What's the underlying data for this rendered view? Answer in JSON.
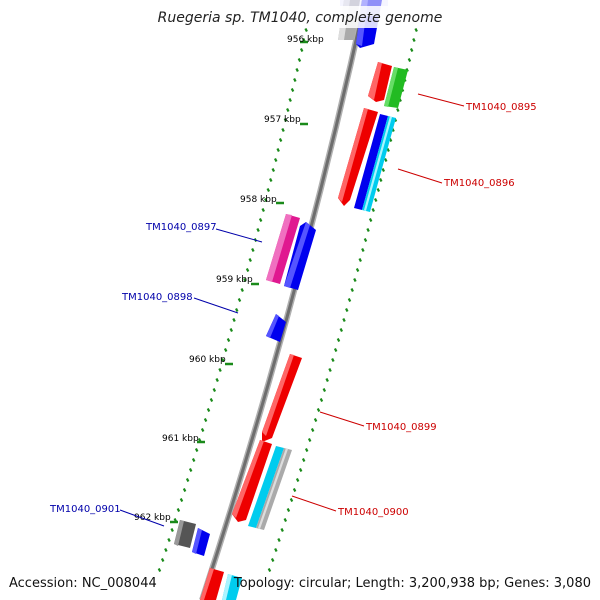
{
  "title": "Ruegeria sp. TM1040, complete genome",
  "footer": {
    "accession": "Accession: NC_008044",
    "summary": "Topology: circular; Length: 3,200,938 bp; Genes: 3,080"
  },
  "ticks": [
    "956 kbp",
    "957 kbp",
    "958 kbp",
    "959 kbp",
    "960 kbp",
    "961 kbp",
    "962 kbp"
  ],
  "gene_labels": [
    {
      "id": "TM1040_0895",
      "color": "#cc0000"
    },
    {
      "id": "TM1040_0896",
      "color": "#cc0000"
    },
    {
      "id": "TM1040_0897",
      "color": "#0000aa"
    },
    {
      "id": "TM1040_0898",
      "color": "#0000aa"
    },
    {
      "id": "TM1040_0899",
      "color": "#cc0000"
    },
    {
      "id": "TM1040_0900",
      "color": "#cc0000"
    },
    {
      "id": "TM1040_0901",
      "color": "#0000aa"
    }
  ],
  "colors": {
    "backbone": "#8a8a8a",
    "tick": "#1a8a1a",
    "red": "#ee0000",
    "blue": "#0000ee",
    "magenta": "#e01890",
    "green": "#22bb22",
    "cyan": "#00ccee",
    "gray": "#aaaaaa",
    "dark": "#555555"
  }
}
